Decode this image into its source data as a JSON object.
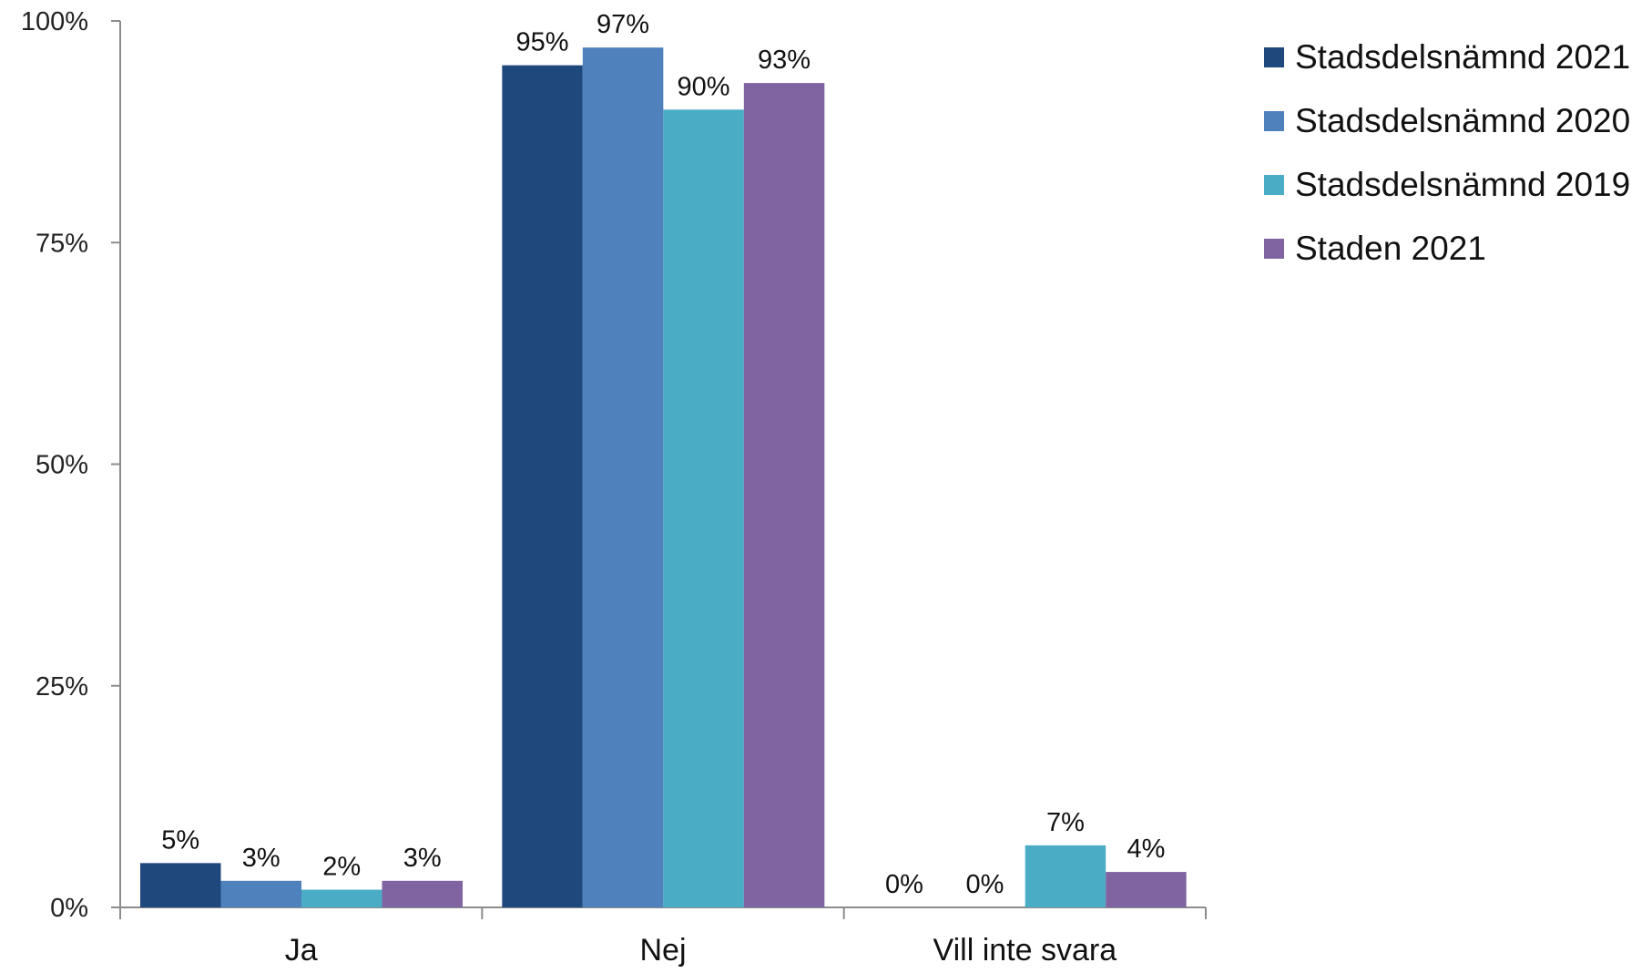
{
  "chart_data": {
    "type": "bar",
    "categories": [
      "Ja",
      "Nej",
      "Vill inte svara"
    ],
    "series": [
      {
        "name": "Stadsdelsnämnd 2021",
        "color": "#1F497D",
        "values": [
          5,
          95,
          0
        ],
        "labels": [
          "5%",
          "95%",
          "0%"
        ]
      },
      {
        "name": "Stadsdelsnämnd 2020",
        "color": "#4F81BD",
        "values": [
          3,
          97,
          0
        ],
        "labels": [
          "3%",
          "97%",
          "0%"
        ]
      },
      {
        "name": "Stadsdelsnämnd 2019",
        "color": "#4BACC6",
        "values": [
          2,
          90,
          7
        ],
        "labels": [
          "2%",
          "90%",
          "7%"
        ]
      },
      {
        "name": "Staden 2021",
        "color": "#8064A2",
        "values": [
          3,
          93,
          4
        ],
        "labels": [
          "3%",
          "93%",
          "4%"
        ]
      }
    ],
    "y_ticks": [
      {
        "value": 0,
        "label": "0%"
      },
      {
        "value": 25,
        "label": "25%"
      },
      {
        "value": 50,
        "label": "50%"
      },
      {
        "value": 75,
        "label": "75%"
      },
      {
        "value": 100,
        "label": "100%"
      }
    ],
    "ylim": [
      0,
      100
    ],
    "grid": false,
    "legend_position": "top-right"
  }
}
